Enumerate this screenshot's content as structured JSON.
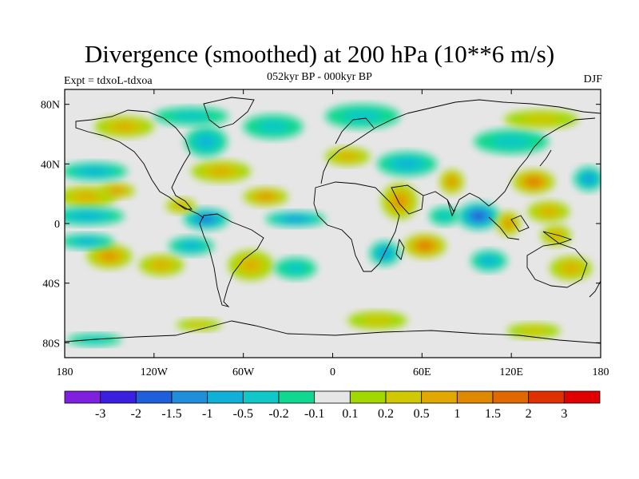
{
  "header": {
    "title": "Divergence (smoothed) at 200 hPa (10**6 m/s)",
    "subtitle": "052kyr BP - 000kyr BP",
    "experiment": "Expt = tdxoL-tdxoa",
    "season": "DJF"
  },
  "map": {
    "projection": "cylindrical-equidistant",
    "lon_range": [
      -180,
      180
    ],
    "lat_range": [
      -90,
      90
    ],
    "lat_ticks": [
      {
        "value": 80,
        "label": "80N"
      },
      {
        "value": 40,
        "label": "40N"
      },
      {
        "value": 0,
        "label": "0"
      },
      {
        "value": -40,
        "label": "40S"
      },
      {
        "value": -80,
        "label": "80S"
      }
    ],
    "lon_ticks": [
      {
        "value": -180,
        "label": "180"
      },
      {
        "value": -120,
        "label": "120W"
      },
      {
        "value": -60,
        "label": "60W"
      },
      {
        "value": 0,
        "label": "0"
      },
      {
        "value": 60,
        "label": "60E"
      },
      {
        "value": 120,
        "label": "120E"
      },
      {
        "value": 180,
        "label": "180"
      }
    ],
    "background_color": "#e6e6e6"
  },
  "colorbar": {
    "colors": [
      "#7f1fe0",
      "#3b1fe0",
      "#1f5fdc",
      "#1f8fdc",
      "#10b0d8",
      "#10c8c8",
      "#10d890",
      "#e6e6e6",
      "#a0d800",
      "#d0c800",
      "#e0a800",
      "#e08800",
      "#e06800",
      "#e03000",
      "#e00000"
    ],
    "labels": [
      "-3",
      "-2",
      "-1.5",
      "-1",
      "-0.5",
      "-0.2",
      "-0.1",
      "0.1",
      "0.2",
      "0.5",
      "1",
      "1.5",
      "2",
      "3"
    ]
  },
  "field_features": [
    {
      "lon": -165,
      "lat": 18,
      "type": "pos",
      "strength": 0.9,
      "rx": 20,
      "ry": 7
    },
    {
      "lon": -145,
      "lat": 22,
      "type": "pos",
      "strength": 1.2,
      "rx": 12,
      "ry": 5
    },
    {
      "lon": -160,
      "lat": 35,
      "type": "neg",
      "strength": 0.8,
      "rx": 22,
      "ry": 6
    },
    {
      "lon": -165,
      "lat": 5,
      "type": "neg",
      "strength": 1.0,
      "rx": 25,
      "ry": 6
    },
    {
      "lon": -150,
      "lat": -22,
      "type": "pos",
      "strength": 1.1,
      "rx": 15,
      "ry": 8
    },
    {
      "lon": -165,
      "lat": -12,
      "type": "neg",
      "strength": 0.8,
      "rx": 18,
      "ry": 5
    },
    {
      "lon": -115,
      "lat": -28,
      "type": "pos",
      "strength": 0.8,
      "rx": 15,
      "ry": 7
    },
    {
      "lon": -95,
      "lat": -15,
      "type": "neg",
      "strength": 0.8,
      "rx": 15,
      "ry": 6
    },
    {
      "lon": -85,
      "lat": 3,
      "type": "neg",
      "strength": 1.5,
      "rx": 15,
      "ry": 7
    },
    {
      "lon": -102,
      "lat": 12,
      "type": "pos",
      "strength": 0.9,
      "rx": 10,
      "ry": 5
    },
    {
      "lon": -75,
      "lat": 35,
      "type": "pos",
      "strength": 1.0,
      "rx": 20,
      "ry": 7
    },
    {
      "lon": -85,
      "lat": 55,
      "type": "neg",
      "strength": 0.9,
      "rx": 14,
      "ry": 10
    },
    {
      "lon": -45,
      "lat": 18,
      "type": "pos",
      "strength": 1.4,
      "rx": 15,
      "ry": 6
    },
    {
      "lon": -25,
      "lat": 3,
      "type": "neg",
      "strength": 1.4,
      "rx": 20,
      "ry": 5
    },
    {
      "lon": -55,
      "lat": -28,
      "type": "pos",
      "strength": 0.8,
      "rx": 15,
      "ry": 10
    },
    {
      "lon": -25,
      "lat": -30,
      "type": "neg",
      "strength": 0.7,
      "rx": 14,
      "ry": 7
    },
    {
      "lon": -140,
      "lat": 65,
      "type": "pos",
      "strength": 0.8,
      "rx": 20,
      "ry": 7
    },
    {
      "lon": -95,
      "lat": 72,
      "type": "neg",
      "strength": 0.6,
      "rx": 25,
      "ry": 6
    },
    {
      "lon": -40,
      "lat": 65,
      "type": "neg",
      "strength": 0.5,
      "rx": 20,
      "ry": 8
    },
    {
      "lon": 20,
      "lat": 72,
      "type": "neg",
      "strength": 0.6,
      "rx": 25,
      "ry": 8
    },
    {
      "lon": 10,
      "lat": 45,
      "type": "pos",
      "strength": 0.8,
      "rx": 15,
      "ry": 6
    },
    {
      "lon": 50,
      "lat": 40,
      "type": "neg",
      "strength": 1.0,
      "rx": 20,
      "ry": 8
    },
    {
      "lon": 45,
      "lat": 15,
      "type": "pos",
      "strength": 1.2,
      "rx": 12,
      "ry": 12
    },
    {
      "lon": 35,
      "lat": -20,
      "type": "neg",
      "strength": 1.2,
      "rx": 10,
      "ry": 8
    },
    {
      "lon": 62,
      "lat": -15,
      "type": "pos",
      "strength": 1.7,
      "rx": 14,
      "ry": 8
    },
    {
      "lon": 80,
      "lat": 28,
      "type": "pos",
      "strength": 1.4,
      "rx": 8,
      "ry": 8
    },
    {
      "lon": 75,
      "lat": 5,
      "type": "neg",
      "strength": 0.7,
      "rx": 10,
      "ry": 6
    },
    {
      "lon": 98,
      "lat": 5,
      "type": "neg",
      "strength": 1.8,
      "rx": 14,
      "ry": 9
    },
    {
      "lon": 118,
      "lat": 0,
      "type": "pos",
      "strength": 1.1,
      "rx": 8,
      "ry": 8
    },
    {
      "lon": 135,
      "lat": 28,
      "type": "pos",
      "strength": 1.6,
      "rx": 14,
      "ry": 8
    },
    {
      "lon": 145,
      "lat": 8,
      "type": "pos",
      "strength": 1.0,
      "rx": 14,
      "ry": 7
    },
    {
      "lon": 105,
      "lat": -25,
      "type": "neg",
      "strength": 0.9,
      "rx": 12,
      "ry": 7
    },
    {
      "lon": 150,
      "lat": -8,
      "type": "pos",
      "strength": 1.0,
      "rx": 10,
      "ry": 7
    },
    {
      "lon": 172,
      "lat": 30,
      "type": "neg",
      "strength": 1.2,
      "rx": 10,
      "ry": 8
    },
    {
      "lon": 120,
      "lat": 55,
      "type": "neg",
      "strength": 0.7,
      "rx": 25,
      "ry": 8
    },
    {
      "lon": 140,
      "lat": 70,
      "type": "pos",
      "strength": 0.6,
      "rx": 25,
      "ry": 6
    },
    {
      "lon": 160,
      "lat": -30,
      "type": "pos",
      "strength": 0.8,
      "rx": 14,
      "ry": 8
    },
    {
      "lon": -160,
      "lat": -78,
      "type": "neg",
      "strength": 0.5,
      "rx": 18,
      "ry": 4
    },
    {
      "lon": -90,
      "lat": -68,
      "type": "pos",
      "strength": 0.5,
      "rx": 15,
      "ry": 4
    },
    {
      "lon": 30,
      "lat": -65,
      "type": "pos",
      "strength": 0.6,
      "rx": 20,
      "ry": 6
    },
    {
      "lon": 135,
      "lat": -72,
      "type": "pos",
      "strength": 0.7,
      "rx": 18,
      "ry": 5
    }
  ]
}
